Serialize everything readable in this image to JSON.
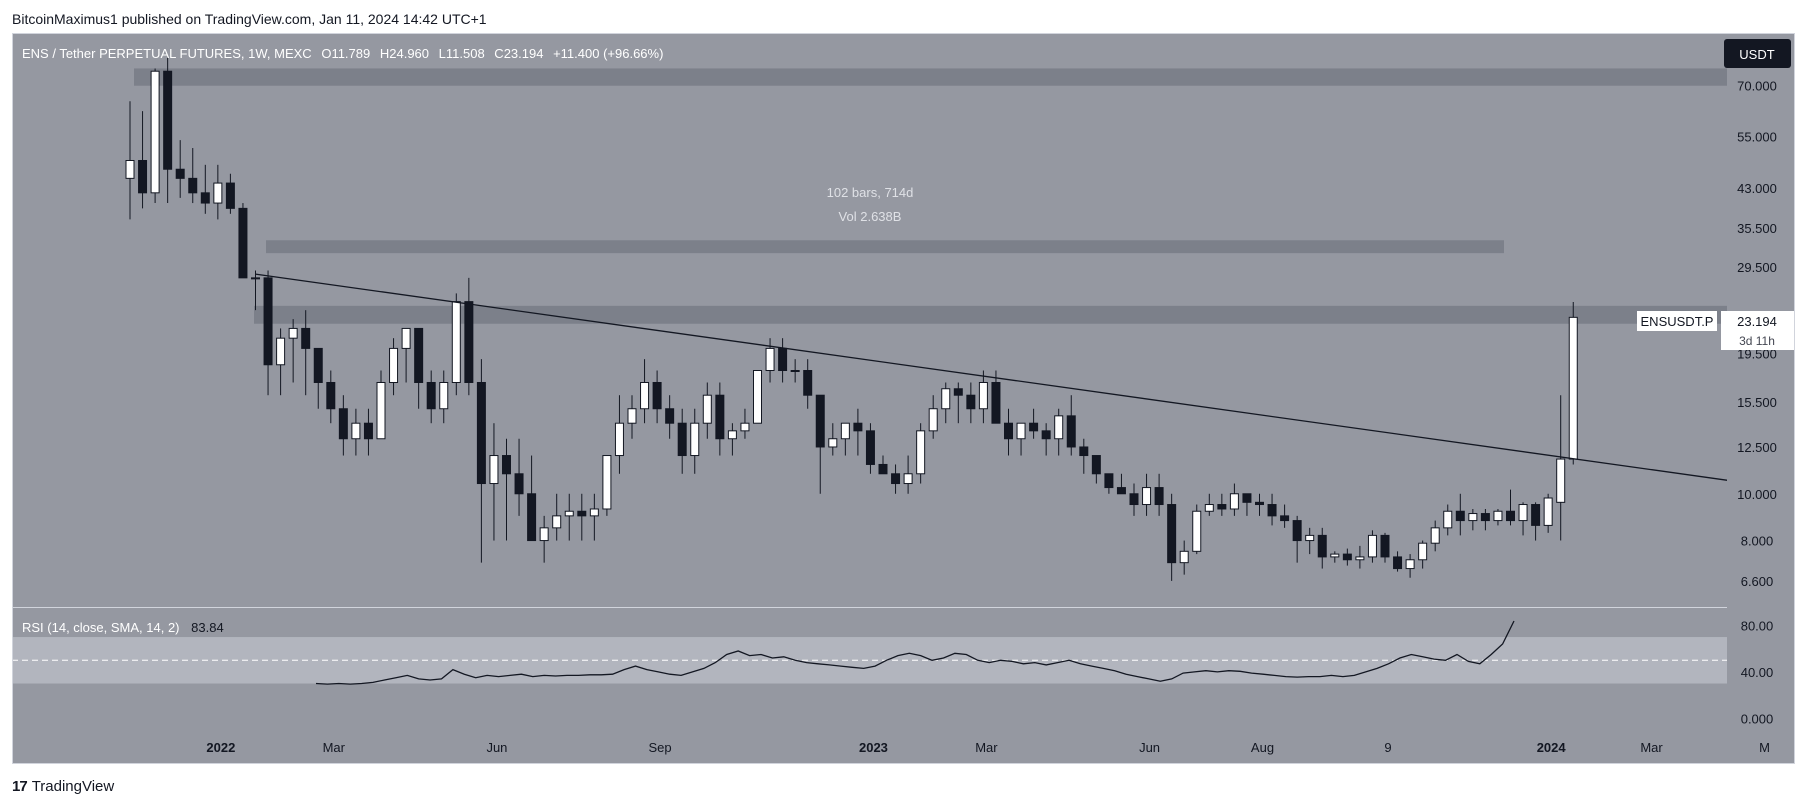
{
  "header": {
    "attribution": "BitcoinMaximus1 published on TradingView.com, Jan 11, 2024 14:42 UTC+1"
  },
  "footer": {
    "brand": "TradingView",
    "logo_text": "17"
  },
  "colors": {
    "pane_bg": "#9598a1",
    "up": "#ffffff",
    "down": "#131722",
    "zone": "#787b86",
    "axis_text": "#131722"
  },
  "main": {
    "symbol_title": "ENS / Tether PERPETUAL FUTURES, 1W, MEXC",
    "ohlc": {
      "o_label": "O",
      "o": "11.789",
      "h_label": "H",
      "h": "24.960",
      "l_label": "L",
      "l": "11.508",
      "c_label": "C",
      "c": "23.194",
      "change": "+11.400 (+96.66%)"
    },
    "currency_button": "USDT",
    "measure_bars": "102 bars, 714d",
    "measure_vol": "Vol 2.638B",
    "price_label": {
      "symbol": "ENSUSDT.P",
      "price": "23.194",
      "countdown": "3d 11h"
    }
  },
  "chart_data": [
    {
      "type": "candlestick",
      "title": "ENS / Tether PERPETUAL FUTURES, 1W, MEXC",
      "scale": "log",
      "ylim": [
        5.8,
        90
      ],
      "y_ticks": [
        "70.000",
        "55.000",
        "43.000",
        "35.500",
        "29.500",
        "19.500",
        "15.500",
        "12.500",
        "10.000",
        "8.000",
        "6.600"
      ],
      "x_ticks": [
        "2022",
        "Mar",
        "Jun",
        "Sep",
        "2023",
        "Mar",
        "Jun",
        "Aug",
        "9",
        "2024",
        "Mar",
        "M"
      ],
      "x_tick_week_index": [
        7,
        16,
        29,
        42,
        59,
        68,
        81,
        90,
        100,
        113,
        121,
        130
      ],
      "candles_ohlc": [
        [
          45,
          65,
          37,
          49
        ],
        [
          49,
          62,
          39,
          42
        ],
        [
          42,
          76,
          40,
          75
        ],
        [
          75,
          80,
          40,
          47
        ],
        [
          47,
          54,
          41,
          45
        ],
        [
          45,
          52,
          40,
          42
        ],
        [
          42,
          48,
          38,
          40
        ],
        [
          40,
          48,
          37,
          44
        ],
        [
          44,
          46,
          38,
          39
        ],
        [
          39,
          40,
          28,
          28
        ],
        [
          28,
          29,
          24,
          28
        ],
        [
          28,
          29,
          16,
          18.5
        ],
        [
          18.5,
          22,
          16,
          21
        ],
        [
          21,
          23,
          17,
          22
        ],
        [
          22,
          24,
          16,
          20
        ],
        [
          20,
          20,
          15,
          17
        ],
        [
          17,
          18,
          14,
          15
        ],
        [
          15,
          16,
          12,
          13
        ],
        [
          13,
          15,
          12,
          14
        ],
        [
          14,
          15,
          12,
          13
        ],
        [
          13,
          18,
          13,
          17
        ],
        [
          17,
          21,
          16,
          20
        ],
        [
          20,
          22,
          17,
          22
        ],
        [
          22,
          22,
          15,
          17
        ],
        [
          17,
          18,
          14,
          15
        ],
        [
          15,
          18,
          14,
          17
        ],
        [
          17,
          26,
          16,
          25
        ],
        [
          25,
          28,
          16,
          17
        ],
        [
          17,
          19,
          7.2,
          10.5
        ],
        [
          10.5,
          14,
          8,
          12
        ],
        [
          12,
          13,
          8,
          11
        ],
        [
          11,
          13,
          9,
          10
        ],
        [
          10,
          12,
          8,
          8
        ],
        [
          8,
          9,
          7.2,
          8.5
        ],
        [
          8.5,
          10,
          8,
          9
        ],
        [
          9,
          10,
          8,
          9.2
        ],
        [
          9.2,
          10,
          8,
          9
        ],
        [
          9,
          10,
          8,
          9.3
        ],
        [
          9.3,
          12,
          9,
          12
        ],
        [
          12,
          16,
          11,
          14
        ],
        [
          14,
          16,
          13,
          15
        ],
        [
          15,
          19,
          14,
          17
        ],
        [
          17,
          18,
          14,
          15
        ],
        [
          15,
          16,
          13,
          14
        ],
        [
          14,
          15,
          11,
          12
        ],
        [
          12,
          15,
          11,
          14
        ],
        [
          14,
          17,
          13,
          16
        ],
        [
          16,
          17,
          12,
          13
        ],
        [
          13,
          14,
          12,
          13.5
        ],
        [
          13.5,
          15,
          13,
          14
        ],
        [
          14,
          18,
          14,
          18
        ],
        [
          18,
          21,
          17,
          20
        ],
        [
          20,
          21,
          17,
          18
        ],
        [
          18,
          19,
          17,
          18
        ],
        [
          18,
          19,
          15,
          16
        ],
        [
          16,
          16,
          10,
          12.5
        ],
        [
          12.5,
          14,
          12,
          13
        ],
        [
          13,
          14,
          12,
          14
        ],
        [
          14,
          15,
          12,
          13.5
        ],
        [
          13.5,
          14,
          11,
          11.5
        ],
        [
          11.5,
          12,
          11,
          11
        ],
        [
          11,
          11.5,
          10,
          10.5
        ],
        [
          10.5,
          12,
          10,
          11
        ],
        [
          11,
          14,
          10.5,
          13.5
        ],
        [
          13.5,
          16,
          13,
          15
        ],
        [
          15,
          17,
          14,
          16.5
        ],
        [
          16.5,
          17,
          14,
          16
        ],
        [
          16,
          17,
          14,
          15
        ],
        [
          15,
          18,
          14,
          17
        ],
        [
          17,
          18,
          14,
          14
        ],
        [
          14,
          15,
          12,
          13
        ],
        [
          13,
          14,
          12,
          14
        ],
        [
          14,
          15,
          13,
          13.5
        ],
        [
          13.5,
          14,
          12,
          13
        ],
        [
          13,
          15,
          12,
          14.5
        ],
        [
          14.5,
          16,
          12,
          12.5
        ],
        [
          12.5,
          13,
          11,
          12
        ],
        [
          12,
          12,
          10.5,
          11
        ],
        [
          11,
          11,
          10,
          10.3
        ],
        [
          10.3,
          11,
          10,
          10
        ],
        [
          10,
          10.5,
          9,
          9.5
        ],
        [
          9.5,
          11,
          9,
          10.3
        ],
        [
          10.3,
          11,
          9,
          9.5
        ],
        [
          9.5,
          10,
          6.6,
          7.2
        ],
        [
          7.2,
          8,
          6.8,
          7.6
        ],
        [
          7.6,
          9.5,
          7.5,
          9.2
        ],
        [
          9.2,
          10,
          9,
          9.5
        ],
        [
          9.5,
          10,
          9,
          9.3
        ],
        [
          9.3,
          10.5,
          9,
          10
        ],
        [
          10,
          10,
          9,
          9.6
        ],
        [
          9.6,
          10,
          9,
          9.5
        ],
        [
          9.5,
          10,
          8.6,
          9
        ],
        [
          9,
          9.5,
          8.5,
          8.8
        ],
        [
          8.8,
          9,
          7.2,
          8
        ],
        [
          8,
          8.5,
          7.5,
          8.2
        ],
        [
          8.2,
          8.5,
          7,
          7.4
        ],
        [
          7.4,
          7.6,
          7.2,
          7.5
        ],
        [
          7.5,
          7.7,
          7.1,
          7.3
        ],
        [
          7.3,
          7.8,
          7,
          7.4
        ],
        [
          7.4,
          8.4,
          7.2,
          8.2
        ],
        [
          8.2,
          8.3,
          7.2,
          7.4
        ],
        [
          7.4,
          7.6,
          6.9,
          7
        ],
        [
          7,
          7.5,
          6.7,
          7.3
        ],
        [
          7.3,
          8,
          7,
          7.9
        ],
        [
          7.9,
          8.8,
          7.6,
          8.5
        ],
        [
          8.5,
          9.5,
          8.2,
          9.2
        ],
        [
          9.2,
          10,
          8.2,
          8.8
        ],
        [
          8.8,
          9.3,
          8.4,
          9.1
        ],
        [
          9.1,
          9.3,
          8.4,
          8.8
        ],
        [
          8.8,
          9.3,
          8.6,
          9.2
        ],
        [
          9.2,
          10.2,
          8.6,
          8.8
        ],
        [
          8.8,
          9.6,
          8.2,
          9.5
        ],
        [
          9.5,
          9.6,
          8,
          8.6
        ],
        [
          8.6,
          10,
          8.3,
          9.8
        ],
        [
          9.6,
          16,
          8,
          11.8
        ],
        [
          11.8,
          24.96,
          11.5,
          23.194
        ]
      ],
      "trendline": [
        [
          10,
          28.5
        ],
        [
          128,
          10.6
        ]
      ],
      "resistance_zones": [
        [
          70,
          76
        ],
        [
          22.5,
          24.5
        ]
      ],
      "dashed_level_band": [
        31.5,
        33.5
      ]
    },
    {
      "type": "line",
      "title": "RSI (14, close, SMA, 14, 2)",
      "last_value": "83.84",
      "ylim": [
        -10,
        95
      ],
      "y_ticks": [
        "80.00",
        "40.00",
        "0.000"
      ],
      "bands": [
        70,
        30
      ],
      "midline": 50,
      "values": [
        30,
        29.5,
        30,
        29.5,
        30,
        31,
        33,
        35,
        37,
        34,
        33,
        34,
        42,
        38,
        35,
        37,
        36,
        37,
        38,
        36,
        37,
        36.5,
        37,
        37,
        37.5,
        37.5,
        38,
        42,
        45,
        42,
        40,
        38,
        37,
        40,
        43,
        48,
        55,
        58,
        54,
        55,
        52,
        53,
        50,
        48,
        47,
        46,
        45,
        44,
        43,
        45,
        50,
        54,
        56,
        54,
        50,
        52,
        56,
        55,
        50,
        48,
        50,
        49,
        47,
        48,
        46,
        48,
        50,
        47,
        45,
        43,
        41,
        38,
        36,
        34,
        32,
        34,
        39,
        40,
        41,
        40,
        41,
        40.5,
        39,
        38,
        37,
        36,
        35.5,
        36,
        36,
        37,
        36,
        37,
        40,
        43,
        47,
        52,
        55,
        53,
        51,
        50,
        55,
        49,
        47,
        55,
        64,
        83.84
      ]
    }
  ]
}
